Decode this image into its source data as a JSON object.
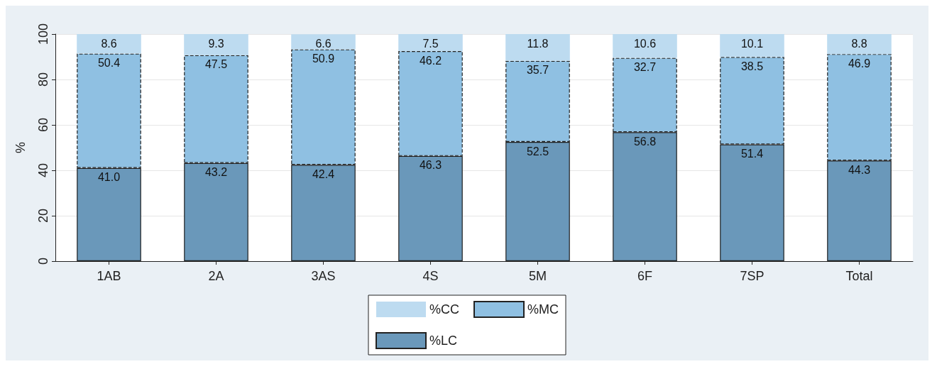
{
  "chart_data": {
    "type": "bar",
    "stacked": true,
    "ylabel": "%",
    "categories": [
      "1AB",
      "2A",
      "3AS",
      "4S",
      "5M",
      "6F",
      "7SP",
      "Total"
    ],
    "series": [
      {
        "name": "%LC",
        "color": "#6a98ba",
        "line_style": "solid",
        "values": [
          41.0,
          43.2,
          42.4,
          46.3,
          52.5,
          56.8,
          51.4,
          44.3
        ],
        "value_labels": [
          "41.0",
          "43.2",
          "42.4",
          "46.3",
          "52.5",
          "56.8",
          "51.4",
          "44.3"
        ]
      },
      {
        "name": "%MC",
        "color": "#8fc0e2",
        "line_style": "dashed",
        "values": [
          50.4,
          47.5,
          50.9,
          46.2,
          35.7,
          32.7,
          38.5,
          46.9
        ],
        "value_labels": [
          "50.4",
          "47.5",
          "50.9",
          "46.2",
          "35.7",
          "32.7",
          "38.5",
          "46.9"
        ]
      },
      {
        "name": "%CC",
        "color": "#bddbf0",
        "line_style": "none",
        "values": [
          8.6,
          9.3,
          6.6,
          7.5,
          11.8,
          10.6,
          10.1,
          8.8
        ],
        "value_labels": [
          "8.6",
          "9.3",
          "6.6",
          "7.5",
          "11.8",
          "10.6",
          "10.1",
          "8.8"
        ]
      }
    ],
    "ylim": [
      0,
      100
    ],
    "yticks": [
      0,
      20,
      40,
      60,
      80,
      100
    ],
    "grid": "y",
    "legend": "bottom"
  }
}
